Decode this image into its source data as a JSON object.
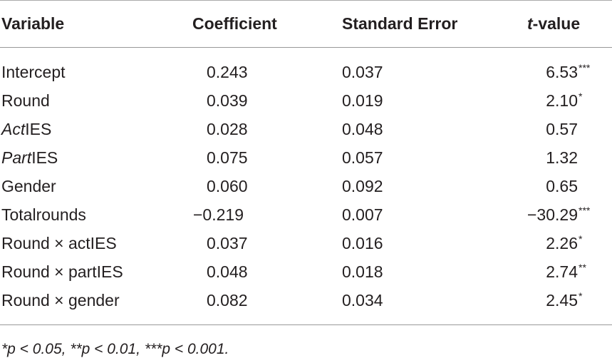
{
  "headers": {
    "variable": "Variable",
    "coefficient": "Coefficient",
    "std_error": "Standard Error",
    "t_value_italic": "t",
    "t_value_rest": "-value"
  },
  "rows": [
    {
      "var_italic": "",
      "var": "Intercept",
      "coef": "0.243",
      "se": "0.037",
      "t": "6.53",
      "stars": "***"
    },
    {
      "var_italic": "",
      "var": "Round",
      "coef": "0.039",
      "se": "0.019",
      "t": "2.10",
      "stars": "*"
    },
    {
      "var_italic": "Act",
      "var": "IES",
      "coef": "0.028",
      "se": "0.048",
      "t": "0.57",
      "stars": ""
    },
    {
      "var_italic": "Part",
      "var": "IES",
      "coef": "0.075",
      "se": "0.057",
      "t": "1.32",
      "stars": ""
    },
    {
      "var_italic": "",
      "var": "Gender",
      "coef": "0.060",
      "se": "0.092",
      "t": "0.65",
      "stars": ""
    },
    {
      "var_italic": "",
      "var": "Totalrounds",
      "coef": "−0.219",
      "se": "0.007",
      "t": "−30.29",
      "stars": "***"
    },
    {
      "var_italic": "",
      "var": "Round × actIES",
      "coef": "0.037",
      "se": "0.016",
      "t": "2.26",
      "stars": "*"
    },
    {
      "var_italic": "",
      "var": "Round × partIES",
      "coef": "0.048",
      "se": "0.018",
      "t": "2.74",
      "stars": "**"
    },
    {
      "var_italic": "",
      "var": "Round × gender",
      "coef": "0.082",
      "se": "0.034",
      "t": "2.45",
      "stars": "*"
    }
  ],
  "footnote": "*p < 0.05,  **p < 0.01,  ***p < 0.001."
}
